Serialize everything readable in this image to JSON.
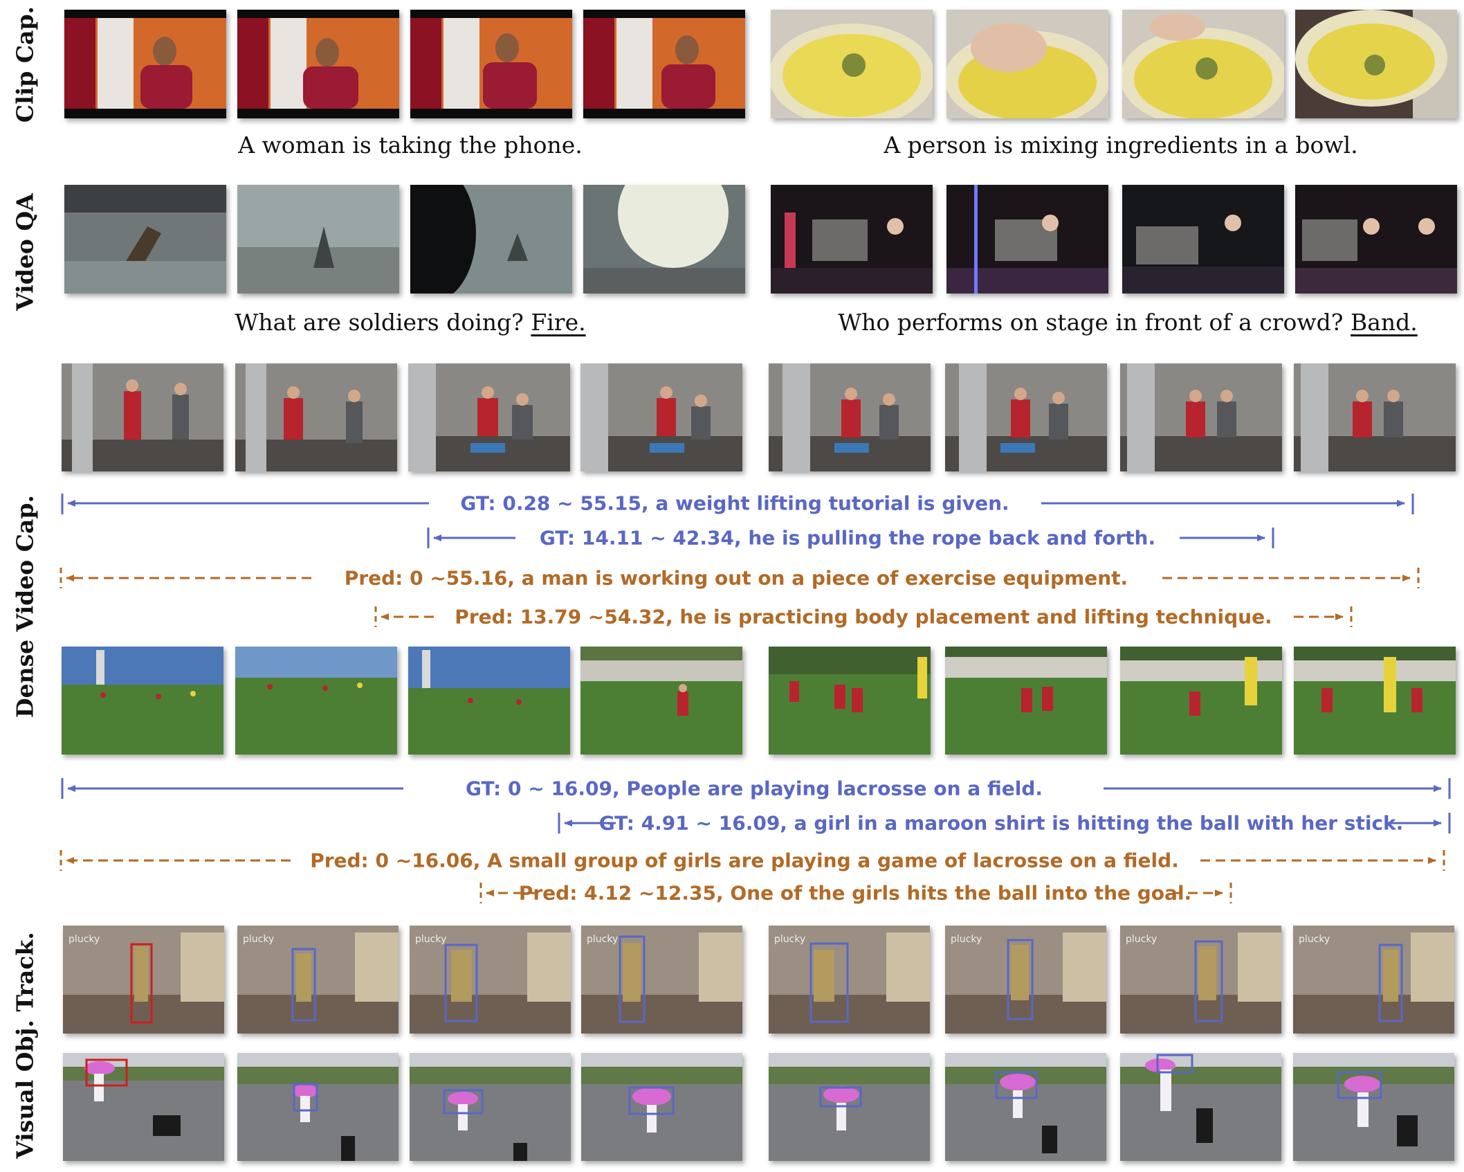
{
  "rows": {
    "clip_caption": {
      "label": "Clip Cap.",
      "captions": [
        "A woman is taking the phone.",
        "A person is mixing ingredients in a bowl."
      ]
    },
    "video_qa": {
      "label": "Video QA",
      "questions": [
        {
          "question": "What are soldiers doing?",
          "answer": "Fire."
        },
        {
          "question": "Who performs on stage in front of a crowd?",
          "answer": "Band."
        }
      ]
    },
    "dense_video_caption": {
      "label": "Dense Video Cap.",
      "example1": {
        "gt1": "GT: 0.28 ~ 55.15, a weight lifting tutorial is given.",
        "gt2": "GT: 14.11 ~ 42.34, he is pulling the rope back and forth.",
        "pred1": "Pred: 0 ~55.16, a man is working out on a piece of exercise equipment.",
        "pred2": "Pred: 13.79 ~54.32, he is practicing body placement and lifting technique."
      },
      "example2": {
        "gt1": "GT: 0 ~ 16.09, People are playing lacrosse on a field.",
        "gt2": "GT: 4.91 ~ 16.09, a girl in a maroon shirt is hitting the ball with her stick.",
        "pred1": "Pred: 0 ~16.06, A small group of girls are playing a game of lacrosse on a field.",
        "pred2": "Pred: 4.12 ~12.35, One of the girls hits the ball into the goal."
      }
    },
    "visual_object_tracking": {
      "label": "Visual Obj. Track.",
      "watermark": "plucky"
    }
  },
  "colors": {
    "gt": "#5a67c4",
    "pred": "#b26a26",
    "first_box": "#cc1f1f",
    "track_box": "#5a67c4"
  }
}
